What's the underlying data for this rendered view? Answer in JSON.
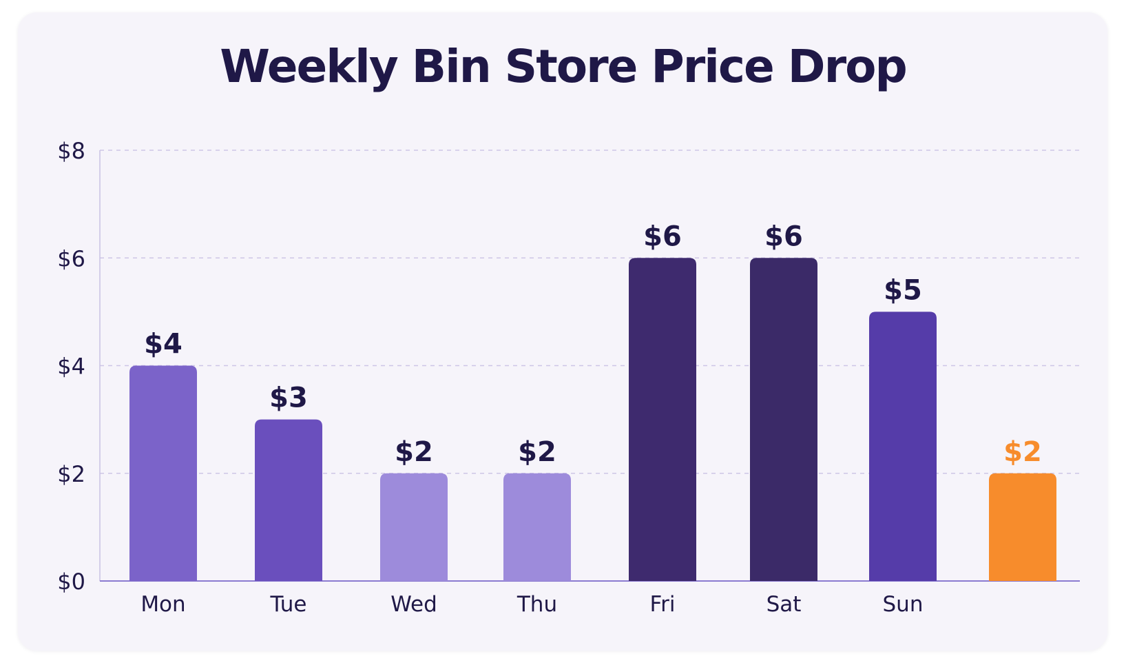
{
  "chart_data": {
    "type": "bar",
    "title": "Weekly Bin Store Price Drop",
    "xlabel": "",
    "ylabel": "",
    "categories": [
      "Mon",
      "Tue",
      "Wed",
      "Thu",
      "Fri",
      "Sat",
      "Sun",
      ""
    ],
    "values": [
      4,
      3,
      2,
      2,
      6,
      6,
      5,
      2
    ],
    "value_labels": [
      "$4",
      "$3",
      "$2",
      "$2",
      "$6",
      "$6",
      "$5",
      "$2"
    ],
    "ylim": [
      0,
      8
    ],
    "y_ticks": [
      0,
      2,
      4,
      6,
      8
    ],
    "y_tick_labels": [
      "$0",
      "$2",
      "$4",
      "$6",
      "$8"
    ],
    "grid": true,
    "legend": "none",
    "bar_colors": [
      "#7b63c9",
      "#6a4fbd",
      "#9d8bdb",
      "#9d8bdb",
      "#3e2a6e",
      "#3b2a68",
      "#553ca9",
      "#f78c2c"
    ],
    "label_colors": [
      "#1f1847",
      "#1f1847",
      "#1f1847",
      "#1f1847",
      "#1f1847",
      "#1f1847",
      "#1f1847",
      "#f78c2c"
    ]
  }
}
